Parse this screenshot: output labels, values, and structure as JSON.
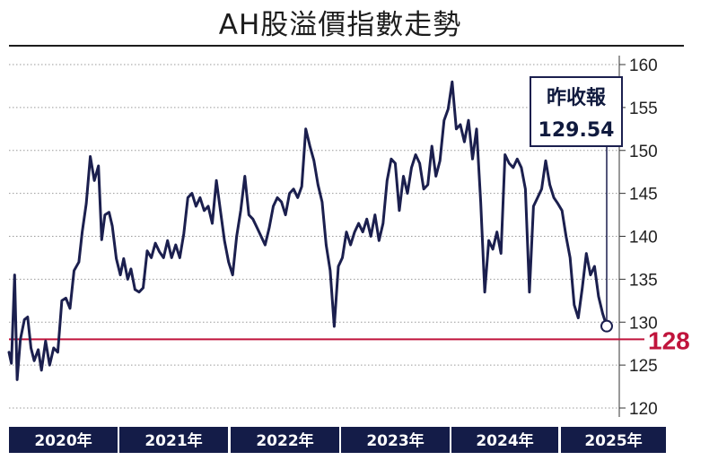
{
  "chart_data": {
    "type": "line",
    "title": "AH股溢價指數走勢",
    "xlabel": "",
    "ylabel": "",
    "ylim": [
      120,
      160
    ],
    "yticks": [
      "160",
      "155",
      "150",
      "145",
      "140",
      "135",
      "130",
      "125",
      "120"
    ],
    "x_categories": [
      "2020年",
      "2021年",
      "2022年",
      "2023年",
      "2024年",
      "2025年"
    ],
    "grid": "dotted horizontal",
    "line_color": "#1b1f4e",
    "reference_line": {
      "value": 128,
      "label": "128",
      "color": "#c0143c"
    },
    "last_point": {
      "label": "昨收報",
      "value": "129.54"
    },
    "series": [
      {
        "values": [
          [
            2020.0,
            126.5
          ],
          [
            2020.03,
            125.2
          ],
          [
            2020.07,
            135.5
          ],
          [
            2020.1,
            123.3
          ],
          [
            2020.14,
            128.0
          ],
          [
            2020.19,
            130.3
          ],
          [
            2020.23,
            130.6
          ],
          [
            2020.27,
            127.0
          ],
          [
            2020.31,
            125.5
          ],
          [
            2020.36,
            126.8
          ],
          [
            2020.4,
            124.4
          ],
          [
            2020.45,
            127.8
          ],
          [
            2020.5,
            125.0
          ],
          [
            2020.55,
            127.0
          ],
          [
            2020.6,
            126.5
          ],
          [
            2020.65,
            132.5
          ],
          [
            2020.7,
            132.8
          ],
          [
            2020.75,
            131.6
          ],
          [
            2020.8,
            136.0
          ],
          [
            2020.86,
            137.0
          ],
          [
            2020.9,
            140.5
          ],
          [
            2020.95,
            143.8
          ],
          [
            2021.0,
            149.3
          ],
          [
            2021.05,
            146.5
          ],
          [
            2021.1,
            148.2
          ],
          [
            2021.14,
            139.6
          ],
          [
            2021.18,
            142.5
          ],
          [
            2021.23,
            142.8
          ],
          [
            2021.27,
            141.2
          ],
          [
            2021.32,
            137.4
          ],
          [
            2021.37,
            135.5
          ],
          [
            2021.41,
            137.4
          ],
          [
            2021.46,
            135.0
          ],
          [
            2021.5,
            136.2
          ],
          [
            2021.55,
            133.8
          ],
          [
            2021.6,
            133.5
          ],
          [
            2021.65,
            134.0
          ],
          [
            2021.7,
            138.3
          ],
          [
            2021.75,
            137.5
          ],
          [
            2021.8,
            139.2
          ],
          [
            2021.85,
            138.2
          ],
          [
            2021.9,
            137.5
          ],
          [
            2021.95,
            139.5
          ],
          [
            2022.0,
            137.5
          ],
          [
            2022.05,
            139.0
          ],
          [
            2022.1,
            137.5
          ],
          [
            2022.15,
            140.3
          ],
          [
            2022.2,
            144.5
          ],
          [
            2022.25,
            145.0
          ],
          [
            2022.3,
            143.5
          ],
          [
            2022.35,
            144.5
          ],
          [
            2022.4,
            143.0
          ],
          [
            2022.45,
            143.5
          ],
          [
            2022.5,
            141.5
          ],
          [
            2022.55,
            146.5
          ],
          [
            2022.6,
            143.0
          ],
          [
            2022.65,
            139.5
          ],
          [
            2022.7,
            137.0
          ],
          [
            2022.75,
            135.5
          ],
          [
            2022.8,
            140.0
          ],
          [
            2022.85,
            143.0
          ],
          [
            2022.9,
            147.0
          ],
          [
            2022.95,
            142.5
          ],
          [
            2023.0,
            142.0
          ],
          [
            2023.05,
            141.0
          ],
          [
            2023.1,
            140.0
          ],
          [
            2023.15,
            139.0
          ],
          [
            2023.2,
            141.0
          ],
          [
            2023.25,
            143.5
          ],
          [
            2023.3,
            144.5
          ],
          [
            2023.35,
            144.0
          ],
          [
            2023.4,
            142.5
          ],
          [
            2023.45,
            145.0
          ],
          [
            2023.5,
            145.5
          ],
          [
            2023.55,
            144.5
          ],
          [
            2023.6,
            145.8
          ],
          [
            2023.65,
            152.5
          ],
          [
            2023.7,
            150.5
          ],
          [
            2023.75,
            148.8
          ],
          [
            2023.8,
            146.0
          ],
          [
            2023.85,
            144.0
          ],
          [
            2023.9,
            139.0
          ],
          [
            2023.95,
            136.0
          ],
          [
            2024.0,
            129.5
          ],
          [
            2024.05,
            136.5
          ],
          [
            2024.1,
            137.5
          ],
          [
            2024.15,
            140.5
          ],
          [
            2024.2,
            139.0
          ],
          [
            2024.25,
            140.5
          ],
          [
            2024.3,
            141.5
          ],
          [
            2024.35,
            140.5
          ],
          [
            2024.4,
            142.0
          ],
          [
            2024.45,
            140.0
          ],
          [
            2024.5,
            142.5
          ],
          [
            2024.55,
            139.5
          ],
          [
            2024.6,
            141.5
          ],
          [
            2024.65,
            146.5
          ],
          [
            2024.7,
            149.0
          ],
          [
            2024.75,
            148.5
          ],
          [
            2024.8,
            143.0
          ],
          [
            2024.85,
            147.0
          ],
          [
            2024.9,
            145.0
          ],
          [
            2024.95,
            148.0
          ],
          [
            2025.0,
            149.5
          ],
          [
            2025.05,
            148.5
          ],
          [
            2025.1,
            145.5
          ],
          [
            2025.15,
            146.0
          ],
          [
            2025.2,
            150.5
          ],
          [
            2025.25,
            147.0
          ],
          [
            2025.3,
            148.8
          ],
          [
            2025.35,
            153.5
          ],
          [
            2025.4,
            154.8
          ],
          [
            2025.45,
            158.0
          ],
          [
            2025.5,
            152.5
          ],
          [
            2025.55,
            153.0
          ],
          [
            2025.6,
            151.0
          ],
          [
            2025.65,
            153.5
          ],
          [
            2025.7,
            149.0
          ],
          [
            2025.75,
            152.5
          ],
          [
            2025.8,
            144.0
          ],
          [
            2025.85,
            133.5
          ],
          [
            2025.9,
            139.5
          ],
          [
            2025.95,
            138.5
          ],
          [
            2026.0,
            140.5
          ],
          [
            2026.05,
            138.0
          ],
          [
            2026.1,
            149.5
          ],
          [
            2026.15,
            148.5
          ],
          [
            2026.2,
            148.0
          ],
          [
            2026.25,
            149.0
          ],
          [
            2026.3,
            148.0
          ],
          [
            2026.35,
            145.5
          ],
          [
            2026.4,
            133.5
          ],
          [
            2026.45,
            143.5
          ],
          [
            2026.5,
            144.5
          ],
          [
            2026.55,
            145.5
          ],
          [
            2026.6,
            148.8
          ],
          [
            2026.65,
            146.0
          ],
          [
            2026.7,
            144.5
          ],
          [
            2026.75,
            143.8
          ],
          [
            2026.8,
            143.0
          ],
          [
            2026.85,
            140.0
          ],
          [
            2026.9,
            137.5
          ],
          [
            2026.95,
            132.0
          ],
          [
            2027.0,
            130.5
          ],
          [
            2027.05,
            134.0
          ],
          [
            2027.1,
            138.0
          ],
          [
            2027.15,
            135.5
          ],
          [
            2027.2,
            136.5
          ],
          [
            2027.25,
            133.0
          ],
          [
            2027.3,
            131.0
          ],
          [
            2027.35,
            129.54
          ]
        ]
      }
    ]
  }
}
